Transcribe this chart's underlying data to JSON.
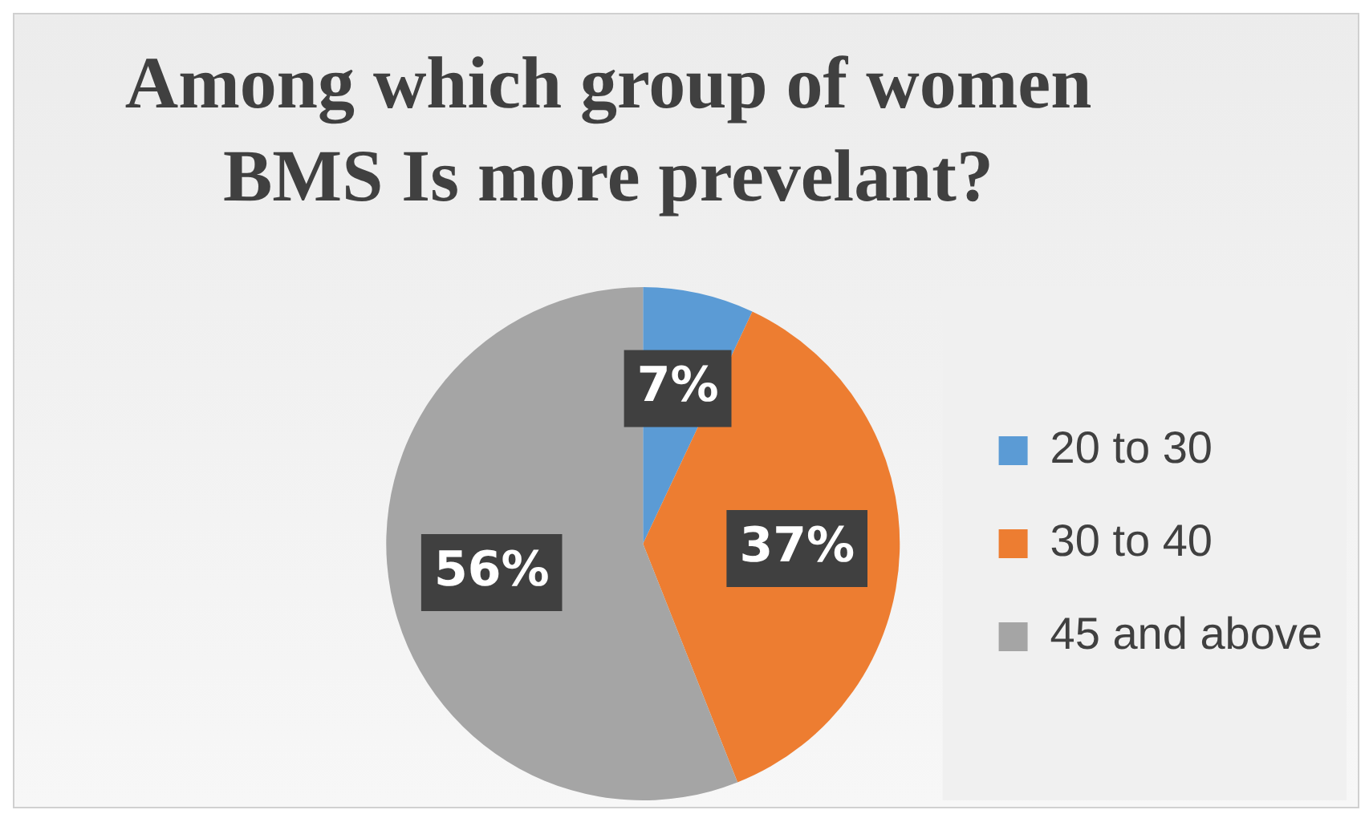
{
  "chart_data": {
    "type": "pie",
    "title": "Among which group of women BMS Is more prevelant?",
    "categories": [
      "20 to 30",
      "30 to 40",
      "45 and above"
    ],
    "values": [
      7,
      37,
      56
    ],
    "colors": [
      "#5b9bd5",
      "#ed7d31",
      "#a5a5a5"
    ],
    "value_labels": [
      "7%",
      "37%",
      "56%"
    ],
    "legend": "right"
  }
}
